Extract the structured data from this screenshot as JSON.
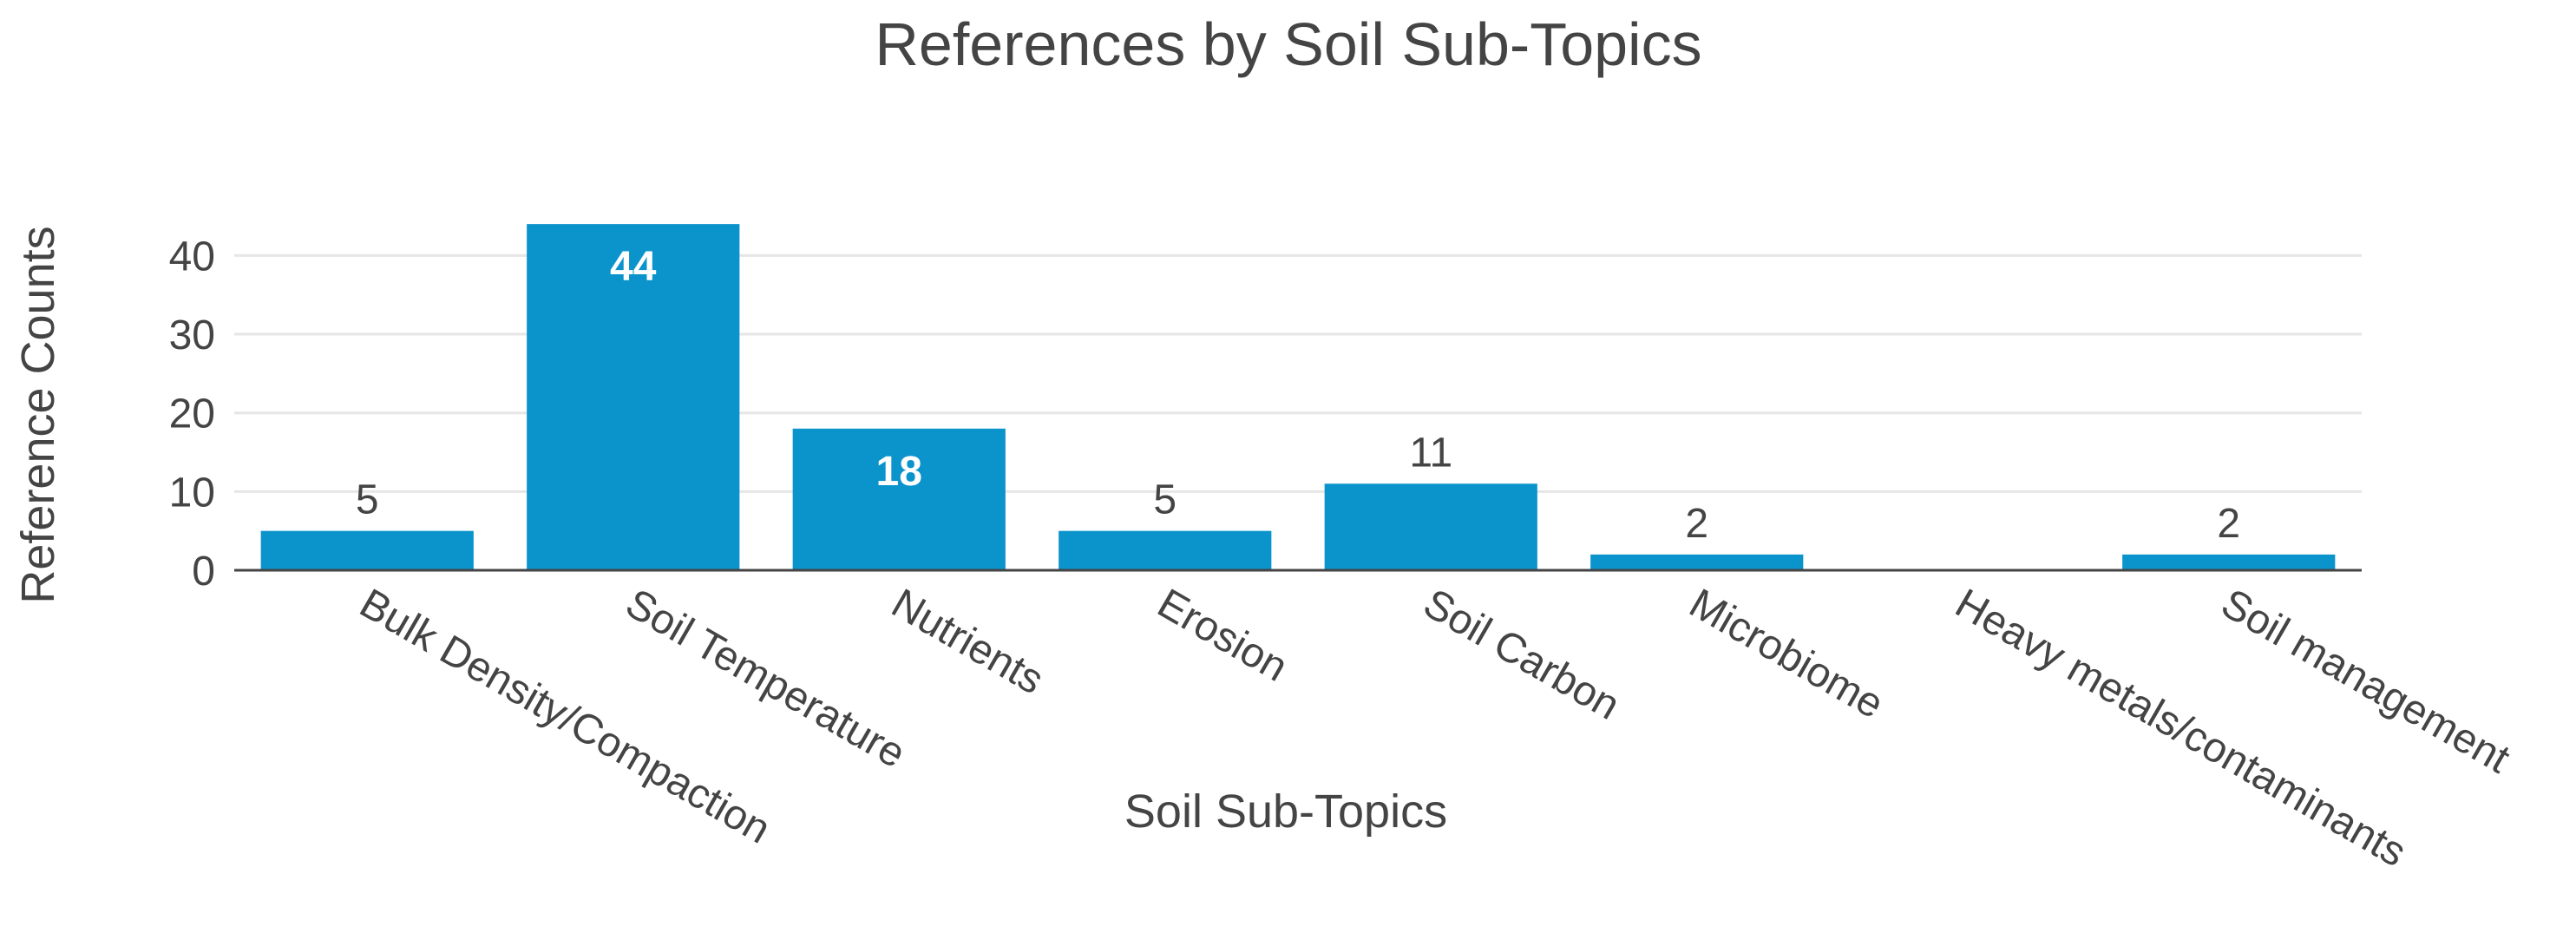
{
  "chart_data": {
    "type": "bar",
    "title": "References by Soil Sub-Topics",
    "xlabel": "Soil Sub-Topics",
    "ylabel": "Reference Counts",
    "categories": [
      "Bulk Density/Compaction",
      "Soil Temperature",
      "Nutrients",
      "Erosion",
      "Soil Carbon",
      "Microbiome",
      "Heavy metals/contaminants",
      "Soil management"
    ],
    "values": [
      5,
      44,
      18,
      5,
      11,
      2,
      0,
      2
    ],
    "value_labels": [
      "5",
      "44",
      "18",
      "5",
      "11",
      "2",
      "",
      "2"
    ],
    "ylim": [
      0,
      46
    ],
    "yticks": [
      0,
      10,
      20,
      30,
      40
    ],
    "grid": true,
    "legend": "none",
    "colors": {
      "bar": "#0b93cc",
      "grid": "#e6e6e6",
      "axis_line": "#444444",
      "text": "#444444",
      "label_inside": "#ffffff"
    }
  }
}
